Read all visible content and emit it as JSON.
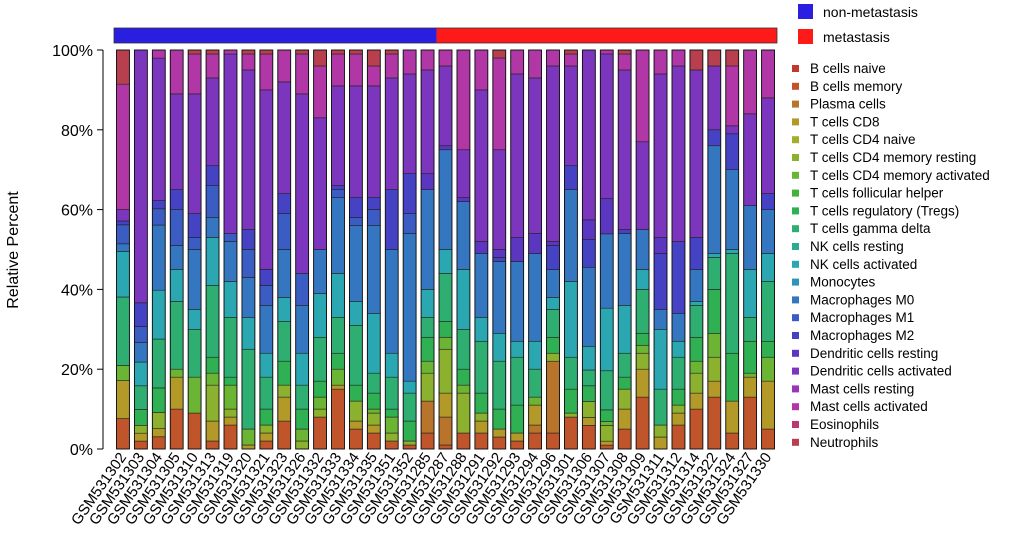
{
  "chart_data": {
    "type": "bar",
    "stacked": true,
    "percent": true,
    "ylabel": "Relative Percent",
    "xlabel": "",
    "ylim": [
      0,
      100
    ],
    "yticks": [
      "0%",
      "20%",
      "40%",
      "60%",
      "80%",
      "100%"
    ],
    "groups": [
      {
        "name": "non-metastasis",
        "color": "#2a1fe0",
        "count": 18
      },
      {
        "name": "metastasis",
        "color": "#ff1a1a",
        "count": 19
      }
    ],
    "categories": [
      "GSM531302",
      "GSM531303",
      "GSM531304",
      "GSM531305",
      "GSM531310",
      "GSM531313",
      "GSM531319",
      "GSM531320",
      "GSM531321",
      "GSM531323",
      "GSM531326",
      "GSM531332",
      "GSM531333",
      "GSM531334",
      "GSM531335",
      "GSM531351",
      "GSM531352",
      "GSM531285",
      "GSM531287",
      "GSM531288",
      "GSM531291",
      "GSM531292",
      "GSM531293",
      "GSM531294",
      "GSM531296",
      "GSM531301",
      "GSM531306",
      "GSM531307",
      "GSM531308",
      "GSM531309",
      "GSM531311",
      "GSM531312",
      "GSM531314",
      "GSM531322",
      "GSM531324",
      "GSM531327",
      "GSM531330"
    ],
    "series_names": [
      "B cells naive",
      "B cells memory",
      "Plasma cells",
      "T cells CD8",
      "T cells CD4 naive",
      "T cells CD4 memory resting",
      "T cells CD4 memory activated",
      "T cells follicular helper",
      "T cells regulatory (Tregs)",
      "T cells gamma delta",
      "NK cells resting",
      "NK cells activated",
      "Monocytes",
      "Macrophages M0",
      "Macrophages M1",
      "Macrophages M2",
      "Dendritic cells resting",
      "Dendritic cells activated",
      "Mast cells resting",
      "Mast cells activated",
      "Eosinophils",
      "Neutrophils"
    ],
    "series_colors": [
      "#c0392b",
      "#c0552b",
      "#b8742a",
      "#b39a28",
      "#a6ad2a",
      "#8cb12e",
      "#6cb433",
      "#44b23a",
      "#2fb052",
      "#2fae72",
      "#2cab92",
      "#2aa7b0",
      "#2e95b8",
      "#3477c0",
      "#3a5cc3",
      "#4543c4",
      "#5b37c1",
      "#7c35bd",
      "#9b34bb",
      "#b137a7",
      "#b73b72",
      "#b8404e"
    ],
    "values": [
      [
        0,
        8,
        0,
        10,
        0,
        0,
        4,
        0,
        0,
        18,
        0,
        12,
        0,
        2,
        5,
        1,
        0,
        3,
        0,
        33,
        0,
        9
      ],
      [
        0,
        2,
        0,
        2,
        0,
        2,
        0,
        0,
        4,
        6,
        0,
        6,
        0,
        5,
        4,
        6,
        0,
        64,
        0,
        0,
        0,
        0
      ],
      [
        0,
        3,
        0,
        2,
        0,
        4,
        0,
        0,
        6,
        12,
        0,
        12,
        0,
        16,
        4,
        2,
        0,
        35,
        0,
        2,
        0,
        0
      ],
      [
        0,
        10,
        0,
        8,
        0,
        0,
        2,
        0,
        0,
        17,
        0,
        8,
        0,
        6,
        9,
        5,
        0,
        24,
        0,
        11,
        0,
        0
      ],
      [
        0,
        9,
        0,
        0,
        0,
        0,
        9,
        0,
        0,
        12,
        0,
        5,
        0,
        15,
        3,
        6,
        0,
        30,
        0,
        10,
        0,
        1
      ],
      [
        0,
        2,
        0,
        5,
        0,
        9,
        3,
        0,
        4,
        18,
        0,
        12,
        0,
        5,
        8,
        5,
        0,
        22,
        0,
        6,
        0,
        1
      ],
      [
        0,
        6,
        0,
        2,
        0,
        2,
        6,
        0,
        2,
        15,
        0,
        9,
        0,
        10,
        2,
        0,
        0,
        45,
        0,
        1,
        0,
        0
      ],
      [
        0,
        0,
        0,
        1,
        0,
        0,
        4,
        0,
        0,
        20,
        0,
        8,
        0,
        10,
        7,
        5,
        0,
        40,
        0,
        4,
        0,
        1
      ],
      [
        0,
        2,
        0,
        2,
        0,
        2,
        0,
        0,
        4,
        8,
        0,
        6,
        0,
        12,
        5,
        4,
        0,
        45,
        0,
        9,
        0,
        1
      ],
      [
        0,
        7,
        0,
        6,
        0,
        3,
        0,
        0,
        6,
        10,
        0,
        6,
        0,
        12,
        9,
        5,
        0,
        28,
        0,
        8,
        0,
        0
      ],
      [
        0,
        0,
        0,
        0,
        0,
        2,
        3,
        0,
        5,
        6,
        0,
        8,
        0,
        12,
        8,
        0,
        0,
        45,
        0,
        10,
        0,
        1
      ],
      [
        0,
        8,
        0,
        0,
        0,
        2,
        3,
        0,
        4,
        11,
        0,
        11,
        0,
        11,
        0,
        0,
        0,
        33,
        0,
        13,
        0,
        4
      ],
      [
        0,
        15,
        0,
        1,
        0,
        0,
        4,
        0,
        4,
        9,
        0,
        11,
        0,
        19,
        2,
        1,
        0,
        25,
        0,
        8,
        0,
        1
      ],
      [
        0,
        5,
        0,
        2,
        0,
        5,
        0,
        0,
        4,
        15,
        0,
        6,
        0,
        19,
        2,
        5,
        0,
        28,
        0,
        8,
        0,
        1
      ],
      [
        0,
        4,
        0,
        2,
        0,
        3,
        1,
        0,
        4,
        5,
        0,
        15,
        0,
        22,
        4,
        3,
        0,
        28,
        0,
        5,
        0,
        4
      ],
      [
        0,
        2,
        0,
        0,
        0,
        2,
        4,
        0,
        2,
        8,
        0,
        6,
        0,
        26,
        0,
        15,
        0,
        28,
        0,
        6,
        0,
        1
      ],
      [
        0,
        1,
        0,
        0,
        0,
        1,
        0,
        0,
        5,
        7,
        0,
        3,
        0,
        37,
        5,
        10,
        0,
        25,
        0,
        6,
        0,
        0
      ],
      [
        0,
        4,
        8,
        0,
        0,
        7,
        3,
        0,
        6,
        5,
        0,
        7,
        0,
        25,
        0,
        0,
        4,
        26,
        0,
        5,
        0,
        0
      ],
      [
        0,
        1,
        7,
        6,
        0,
        11,
        3,
        0,
        4,
        12,
        0,
        6,
        0,
        25,
        0,
        0,
        1,
        20,
        0,
        4,
        0,
        0
      ],
      [
        0,
        4,
        0,
        0,
        0,
        10,
        2,
        0,
        4,
        10,
        0,
        15,
        0,
        17,
        0,
        0,
        1,
        12,
        0,
        25,
        0,
        0
      ],
      [
        0,
        4,
        0,
        3,
        0,
        2,
        0,
        0,
        5,
        13,
        0,
        6,
        0,
        16,
        0,
        0,
        3,
        38,
        0,
        10,
        0,
        0
      ],
      [
        0,
        3,
        0,
        2,
        0,
        0,
        0,
        0,
        5,
        12,
        0,
        7,
        0,
        18,
        0,
        1,
        2,
        25,
        0,
        23,
        0,
        2
      ],
      [
        0,
        2,
        0,
        2,
        0,
        0,
        0,
        0,
        7,
        12,
        0,
        4,
        0,
        20,
        0,
        0,
        6,
        41,
        0,
        6,
        0,
        0
      ],
      [
        0,
        4,
        2,
        5,
        0,
        0,
        2,
        0,
        0,
        7,
        0,
        7,
        0,
        22,
        0,
        0,
        5,
        39,
        0,
        7,
        0,
        0
      ],
      [
        0,
        4,
        18,
        0,
        0,
        2,
        0,
        0,
        4,
        7,
        0,
        3,
        0,
        7,
        0,
        6,
        1,
        44,
        0,
        4,
        0,
        0
      ],
      [
        0,
        8,
        0,
        0,
        0,
        1,
        0,
        0,
        6,
        8,
        0,
        19,
        0,
        23,
        0,
        6,
        0,
        25,
        0,
        3,
        0,
        1
      ],
      [
        0,
        6,
        0,
        2,
        0,
        4,
        0,
        0,
        4,
        4,
        0,
        6,
        0,
        20,
        0,
        7,
        5,
        43,
        0,
        0,
        0,
        0
      ],
      [
        0,
        1,
        0,
        1,
        0,
        4,
        1,
        0,
        3,
        10,
        0,
        16,
        0,
        19,
        0,
        0,
        9,
        37,
        0,
        1,
        0,
        0
      ],
      [
        0,
        5,
        0,
        5,
        0,
        5,
        0,
        0,
        3,
        6,
        0,
        12,
        0,
        18,
        0,
        1,
        0,
        40,
        0,
        4,
        0,
        1
      ],
      [
        0,
        13,
        0,
        7,
        0,
        4,
        2,
        0,
        3,
        11,
        0,
        5,
        0,
        10,
        0,
        0,
        0,
        22,
        0,
        23,
        0,
        0
      ],
      [
        0,
        0,
        0,
        3,
        0,
        3,
        0,
        0,
        0,
        9,
        0,
        15,
        0,
        5,
        0,
        14,
        4,
        41,
        0,
        6,
        0,
        0
      ],
      [
        0,
        6,
        0,
        3,
        0,
        2,
        0,
        0,
        4,
        8,
        0,
        4,
        0,
        7,
        0,
        18,
        0,
        44,
        0,
        4,
        0,
        0
      ],
      [
        0,
        10,
        0,
        4,
        0,
        5,
        3,
        0,
        6,
        8,
        0,
        1,
        0,
        8,
        0,
        8,
        0,
        42,
        0,
        0,
        0,
        5
      ],
      [
        0,
        13,
        0,
        4,
        0,
        6,
        6,
        0,
        11,
        8,
        0,
        1,
        0,
        27,
        0,
        4,
        0,
        16,
        0,
        0,
        0,
        4
      ],
      [
        0,
        4,
        0,
        8,
        0,
        0,
        0,
        0,
        12,
        25,
        0,
        1,
        0,
        20,
        0,
        9,
        0,
        2,
        0,
        15,
        0,
        4
      ],
      [
        0,
        13,
        0,
        5,
        0,
        0,
        1,
        0,
        8,
        6,
        0,
        12,
        0,
        16,
        0,
        0,
        0,
        23,
        0,
        16,
        0,
        0
      ],
      [
        0,
        5,
        0,
        12,
        0,
        0,
        6,
        0,
        4,
        15,
        0,
        7,
        0,
        11,
        0,
        4,
        0,
        24,
        0,
        12,
        0,
        0
      ]
    ]
  }
}
